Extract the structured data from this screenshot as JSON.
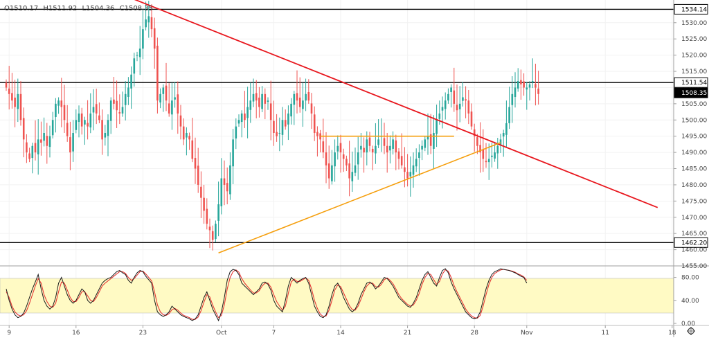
{
  "ohlc": {
    "open": "O1510.17",
    "high": "H1511.92",
    "low": "L1504.36",
    "close": "C1508.35"
  },
  "colors": {
    "up": "#26a69a",
    "down": "#ef5350",
    "trend": "#e8171e",
    "triangle": "#f59e0b",
    "level": "#000000",
    "stoch_k": "#1a1a1a",
    "stoch_d": "#e53935",
    "stoch_band": "#fffac4"
  },
  "icons": {
    "settings": "gear-icon"
  },
  "chart_data": {
    "type": "candlestick",
    "price_axis": {
      "ylim": [
        1455,
        1537
      ],
      "ticks": [
        "1455.00",
        "1460.00",
        "1465.00",
        "1470.00",
        "1475.00",
        "1480.00",
        "1485.00",
        "1490.00",
        "1495.00",
        "1500.00",
        "1505.00",
        "1510.00",
        "1515.00",
        "1520.00",
        "1525.00",
        "1530.00"
      ]
    },
    "price_tags": [
      {
        "label": "1534.14",
        "value": 1534.14,
        "style": "level"
      },
      {
        "label": "1511.54",
        "value": 1511.54,
        "style": "level"
      },
      {
        "label": "1508.35",
        "value": 1508.35,
        "style": "last"
      },
      {
        "label": "1462.20",
        "value": 1462.2,
        "style": "level"
      }
    ],
    "x_axis": {
      "ticks": [
        {
          "label": "9",
          "bar": 1
        },
        {
          "label": "16",
          "bar": 24
        },
        {
          "label": "23",
          "bar": 47
        },
        {
          "label": "Oct",
          "bar": 74
        },
        {
          "label": "7",
          "bar": 92
        },
        {
          "label": "14",
          "bar": 115
        },
        {
          "label": "21",
          "bar": 138
        },
        {
          "label": "28",
          "bar": 161
        },
        {
          "label": "Nov",
          "bar": 179
        },
        {
          "label": "11",
          "bar": 206
        },
        {
          "label": "18",
          "bar": 229
        }
      ]
    },
    "closes": [
      1510,
      1508,
      1506,
      1504,
      1508,
      1500,
      1494,
      1490,
      1488,
      1492,
      1490,
      1494,
      1493,
      1496,
      1492,
      1495,
      1500,
      1505,
      1506,
      1504,
      1500,
      1495,
      1490,
      1496,
      1500,
      1502,
      1498,
      1500,
      1498,
      1502,
      1504,
      1502,
      1500,
      1494,
      1496,
      1500,
      1506,
      1505,
      1503,
      1502,
      1504,
      1508,
      1510,
      1514,
      1519,
      1520,
      1522,
      1528,
      1531,
      1532,
      1528,
      1522,
      1506,
      1508,
      1510,
      1506,
      1502,
      1506,
      1507,
      1502,
      1498,
      1494,
      1496,
      1494,
      1488,
      1485,
      1480,
      1476,
      1472,
      1468,
      1466,
      1463,
      1468,
      1474,
      1482,
      1480,
      1478,
      1486,
      1494,
      1498,
      1500,
      1502,
      1500,
      1504,
      1506,
      1508,
      1506,
      1504,
      1508,
      1505,
      1506,
      1500,
      1496,
      1495,
      1496,
      1500,
      1498,
      1502,
      1505,
      1508,
      1506,
      1504,
      1506,
      1508,
      1506,
      1502,
      1496,
      1495,
      1494,
      1490,
      1486,
      1482,
      1486,
      1490,
      1492,
      1490,
      1488,
      1486,
      1482,
      1484,
      1486,
      1490,
      1492,
      1490,
      1494,
      1492,
      1490,
      1492,
      1494,
      1495,
      1492,
      1490,
      1492,
      1494,
      1490,
      1488,
      1486,
      1484,
      1482,
      1484,
      1486,
      1488,
      1490,
      1492,
      1494,
      1495,
      1492,
      1496,
      1500,
      1502,
      1504,
      1506,
      1508,
      1510,
      1505,
      1503,
      1505,
      1507,
      1506,
      1502,
      1498,
      1495,
      1492,
      1490,
      1488,
      1487,
      1488,
      1489,
      1490,
      1492,
      1494,
      1496,
      1499,
      1504,
      1508,
      1510,
      1512,
      1511,
      1510,
      1510,
      1511,
      1512,
      1510,
      1508
    ],
    "lines": [
      {
        "name": "",
        "kind": "horizontal",
        "value": 1534.14
      },
      {
        "name": "",
        "kind": "horizontal",
        "value": 1511.54
      },
      {
        "name": "",
        "kind": "horizontal",
        "value": 1462.2
      },
      {
        "name": "",
        "kind": "trend",
        "from": {
          "bar": 39,
          "price": 1539
        },
        "to": {
          "bar": 224,
          "price": 1473
        }
      },
      {
        "name": "",
        "kind": "triangle",
        "from": {
          "bar": 73,
          "price": 1459
        },
        "to": {
          "bar": 170,
          "price": 1493
        }
      },
      {
        "name": "",
        "kind": "triangle-flat",
        "from": {
          "bar": 108,
          "price": 1495
        },
        "to": {
          "bar": 154,
          "price": 1495
        }
      }
    ],
    "stochastic": {
      "ylim": [
        0,
        100
      ],
      "ticks": [
        "0.00",
        "40.00",
        "80.00"
      ],
      "band": [
        20,
        80
      ],
      "k": [
        60,
        40,
        25,
        15,
        10,
        12,
        18,
        30,
        45,
        60,
        72,
        85,
        60,
        40,
        30,
        25,
        30,
        45,
        70,
        80,
        65,
        50,
        40,
        35,
        40,
        50,
        60,
        55,
        40,
        35,
        40,
        50,
        60,
        70,
        75,
        78,
        80,
        85,
        90,
        92,
        88,
        85,
        75,
        70,
        80,
        88,
        92,
        90,
        82,
        76,
        70,
        40,
        20,
        15,
        12,
        15,
        20,
        30,
        25,
        20,
        15,
        12,
        10,
        8,
        5,
        8,
        15,
        30,
        45,
        55,
        40,
        25,
        15,
        5,
        20,
        45,
        75,
        90,
        94,
        92,
        85,
        70,
        65,
        60,
        55,
        50,
        55,
        60,
        70,
        72,
        68,
        58,
        40,
        30,
        25,
        20,
        40,
        65,
        80,
        75,
        70,
        75,
        78,
        80,
        70,
        50,
        30,
        20,
        12,
        10,
        15,
        30,
        50,
        65,
        70,
        60,
        45,
        35,
        25,
        20,
        25,
        35,
        50,
        60,
        70,
        72,
        68,
        60,
        65,
        72,
        80,
        78,
        72,
        65,
        55,
        45,
        40,
        35,
        30,
        28,
        35,
        45,
        60,
        75,
        85,
        90,
        80,
        70,
        65,
        80,
        92,
        95,
        88,
        72,
        60,
        50,
        40,
        30,
        20,
        15,
        10,
        8,
        10,
        20,
        40,
        60,
        75,
        85,
        90,
        92,
        95,
        94,
        93,
        92,
        90,
        88,
        85,
        82,
        80,
        70
      ],
      "d": [
        55,
        45,
        30,
        20,
        15,
        13,
        15,
        22,
        35,
        50,
        65,
        78,
        70,
        50,
        38,
        30,
        28,
        35,
        55,
        72,
        70,
        58,
        45,
        38,
        38,
        45,
        55,
        55,
        48,
        40,
        38,
        45,
        55,
        65,
        70,
        74,
        78,
        82,
        86,
        90,
        90,
        87,
        80,
        75,
        78,
        84,
        90,
        91,
        86,
        80,
        74,
        55,
        32,
        20,
        15,
        14,
        17,
        24,
        26,
        23,
        18,
        14,
        12,
        10,
        7,
        7,
        11,
        22,
        37,
        50,
        46,
        32,
        20,
        10,
        14,
        32,
        60,
        80,
        90,
        93,
        89,
        78,
        70,
        64,
        58,
        53,
        53,
        57,
        65,
        70,
        70,
        63,
        50,
        38,
        30,
        23,
        30,
        52,
        72,
        77,
        73,
        73,
        76,
        79,
        75,
        60,
        40,
        26,
        16,
        12,
        13,
        23,
        40,
        58,
        67,
        64,
        53,
        42,
        31,
        24,
        23,
        30,
        42,
        55,
        65,
        70,
        70,
        64,
        63,
        68,
        76,
        79,
        75,
        69,
        60,
        50,
        43,
        38,
        33,
        30,
        32,
        40,
        52,
        68,
        80,
        87,
        85,
        76,
        68,
        73,
        86,
        93,
        91,
        80,
        66,
        55,
        45,
        35,
        25,
        18,
        13,
        10,
        9,
        14,
        30,
        50,
        68,
        80,
        87,
        90,
        93,
        94,
        93,
        92,
        91,
        89,
        86,
        84,
        81,
        75
      ]
    }
  }
}
